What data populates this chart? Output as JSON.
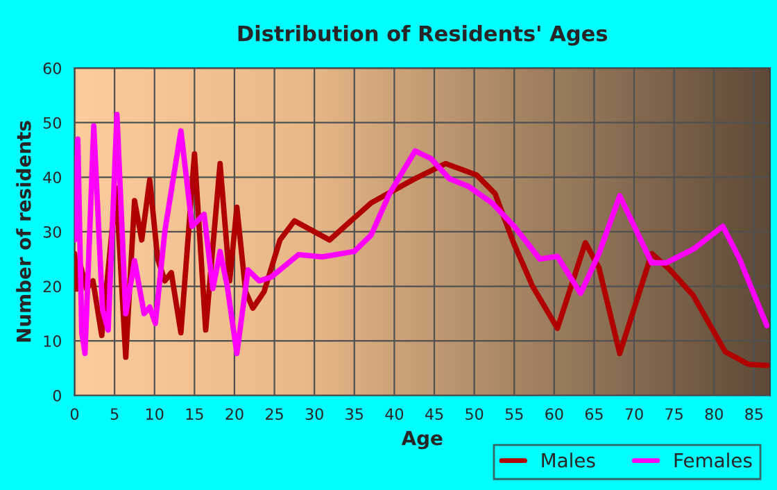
{
  "chart_data": {
    "type": "line",
    "title": "Distribution of Residents' Ages",
    "xlabel": "Age",
    "ylabel": "Number of residents",
    "xlim": [
      0,
      87
    ],
    "xticks": [
      0,
      5,
      10,
      15,
      20,
      25,
      30,
      35,
      40,
      45,
      50,
      55,
      60,
      65,
      70,
      75,
      80,
      85
    ],
    "ylim": [
      0,
      60
    ],
    "yticks": [
      0,
      10,
      20,
      30,
      40,
      50,
      60
    ],
    "grid": true,
    "legend": "bottom right",
    "marker": "none",
    "line_style": "solid",
    "series": [
      {
        "name": "Males",
        "color": "#b00000",
        "x": [
          0,
          0.3,
          0.7,
          1.5,
          2.3,
          3.4,
          5.2,
          6.4,
          7.5,
          8.4,
          9.4,
          10.4,
          11.3,
          12.1,
          13.3,
          15,
          16.4,
          18.2,
          19.4,
          20.3,
          21.4,
          22.3,
          23.7,
          25.7,
          27.5,
          31.9,
          37.1,
          42.4,
          46.4,
          50.3,
          52.6,
          55,
          57.3,
          60.4,
          63.9,
          65.6,
          68.2,
          72.2,
          74.5,
          77.4,
          81.4,
          84.3,
          86.6
        ],
        "values": [
          26,
          19.5,
          24,
          19.5,
          21,
          11,
          38,
          7,
          35.7,
          28.5,
          39.5,
          25,
          21,
          22.5,
          11.5,
          44.3,
          12,
          42.5,
          21,
          34.5,
          19,
          16,
          19,
          28.5,
          32,
          28.5,
          35.3,
          39.6,
          42.5,
          40.4,
          37,
          27.7,
          20,
          12.3,
          28,
          23.4,
          7.7,
          26,
          23,
          18.3,
          8,
          5.7,
          5.5
        ]
      },
      {
        "name": "Females",
        "color": "#ff00ff",
        "x": [
          0,
          0.4,
          0.9,
          1.3,
          2.4,
          3.5,
          4.2,
          5.3,
          6.4,
          7.5,
          8.7,
          9.4,
          10.1,
          11.3,
          13.3,
          14.7,
          16.2,
          17.3,
          18.2,
          19.1,
          20.3,
          21.7,
          23.1,
          24.6,
          28,
          31,
          35,
          37.1,
          39.4,
          42.6,
          44.6,
          46.9,
          49.3,
          52.2,
          55,
          58.2,
          60.4,
          63.3,
          65.6,
          68.2,
          72.2,
          74,
          77.4,
          81.1,
          83.2,
          86.6
        ],
        "values": [
          28.5,
          47,
          11.5,
          7.7,
          49.4,
          15.7,
          12,
          51.5,
          15,
          24.7,
          15,
          16.2,
          13.2,
          30.2,
          48.5,
          31,
          33.2,
          19.6,
          26.4,
          20,
          7.7,
          23,
          21,
          21.7,
          25.8,
          25.4,
          26.4,
          29.4,
          37,
          44.8,
          43.4,
          39.7,
          38.3,
          35.3,
          31,
          25,
          25.5,
          18.7,
          26,
          36.6,
          24.3,
          24.3,
          26.8,
          31,
          25,
          12.8
        ]
      }
    ]
  }
}
